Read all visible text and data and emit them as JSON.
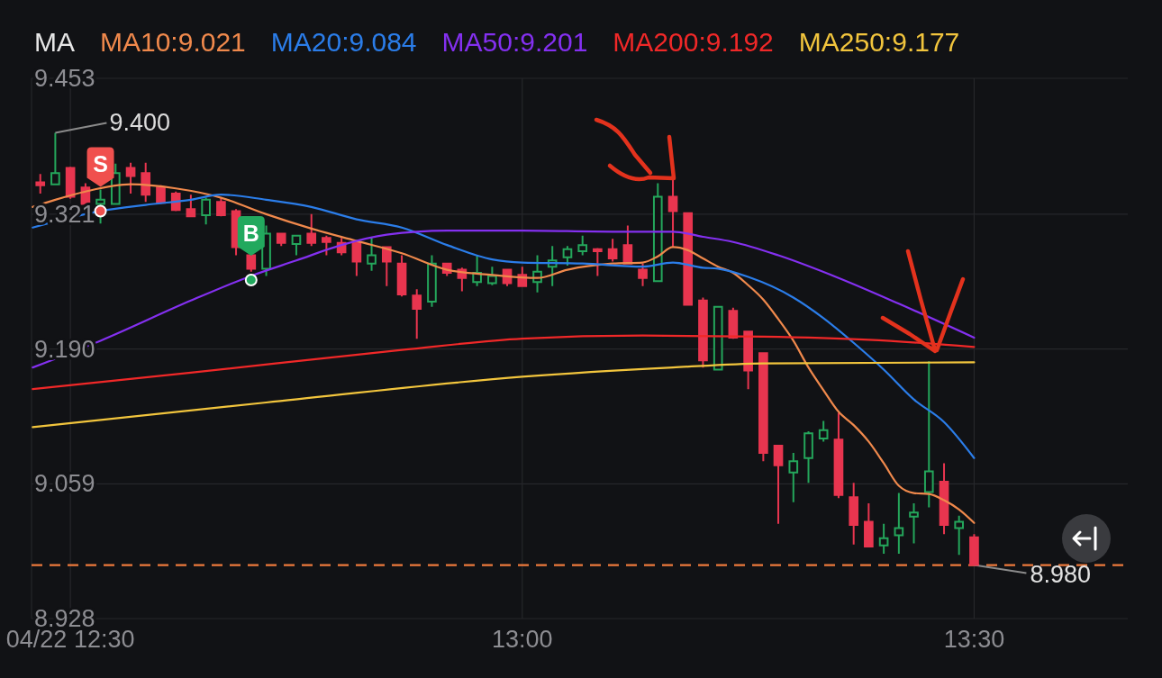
{
  "chart_data": {
    "type": "candlestick",
    "legend_title": "MA",
    "legend": "top left",
    "grid": true,
    "xlim": [
      12.457,
      13.67
    ],
    "xticks": [
      {
        "value": 12.5,
        "label": "04/22 12:30"
      },
      {
        "value": 13,
        "label": "13:00"
      },
      {
        "value": 13.5,
        "label": "13:30"
      }
    ],
    "ylim": [
      8.928,
      9.453
    ],
    "yticks": [
      9.453,
      9.321,
      {
        "value": 9.19,
        "label": "9.190"
      },
      9.059,
      8.928
    ],
    "x": [
      12.4667,
      12.4833,
      12.5,
      12.5167,
      12.5333,
      12.55,
      12.5667,
      12.5833,
      12.6,
      12.6167,
      12.6333,
      12.65,
      12.6667,
      12.6833,
      12.7,
      12.7167,
      12.7333,
      12.75,
      12.7667,
      12.7833,
      12.8,
      12.8167,
      12.8333,
      12.85,
      12.8667,
      12.8833,
      12.9,
      12.9167,
      12.9333,
      12.95,
      12.9667,
      12.9833,
      13,
      13.0167,
      13.0333,
      13.05,
      13.0667,
      13.0833,
      13.1,
      13.1167,
      13.1333,
      13.15,
      13.1667,
      13.1833,
      13.2,
      13.2167,
      13.2333,
      13.25,
      13.2667,
      13.2833,
      13.3,
      13.3167,
      13.3333,
      13.35,
      13.3667,
      13.3833,
      13.4,
      13.4167,
      13.4333,
      13.45,
      13.4667,
      13.4833,
      13.5
    ],
    "ohlc": [
      [
        9.352,
        9.36,
        9.341,
        9.349
      ],
      [
        9.35,
        9.4,
        9.349,
        9.361
      ],
      [
        9.366,
        9.367,
        9.336,
        9.338
      ],
      [
        9.347,
        9.351,
        9.328,
        9.331
      ],
      [
        9.331,
        9.345,
        9.312,
        9.335
      ],
      [
        9.331,
        9.37,
        9.331,
        9.361
      ],
      [
        9.366,
        9.371,
        9.341,
        9.358
      ],
      [
        9.361,
        9.371,
        9.333,
        9.34
      ],
      [
        9.347,
        9.349,
        9.331,
        9.332
      ],
      [
        9.341,
        9.343,
        9.324,
        9.325
      ],
      [
        9.326,
        9.34,
        9.318,
        9.319
      ],
      [
        9.32,
        9.337,
        9.311,
        9.335
      ],
      [
        9.333,
        9.337,
        9.319,
        9.32
      ],
      [
        9.324,
        9.326,
        9.281,
        9.289
      ],
      [
        9.281,
        9.281,
        9.265,
        9.268
      ],
      [
        9.268,
        9.31,
        9.261,
        9.302
      ],
      [
        9.302,
        9.303,
        9.29,
        9.293
      ],
      [
        9.292,
        9.301,
        9.281,
        9.3
      ],
      [
        9.302,
        9.321,
        9.29,
        9.293
      ],
      [
        9.298,
        9.3,
        9.281,
        9.294
      ],
      [
        9.293,
        9.298,
        9.281,
        9.284
      ],
      [
        9.293,
        9.294,
        9.261,
        9.275
      ],
      [
        9.273,
        9.299,
        9.266,
        9.281
      ],
      [
        9.289,
        9.289,
        9.251,
        9.275
      ],
      [
        9.273,
        9.281,
        9.241,
        9.243
      ],
      [
        9.242,
        9.248,
        9.2,
        9.229
      ],
      [
        9.236,
        9.281,
        9.231,
        9.273
      ],
      [
        9.273,
        9.273,
        9.261,
        9.264
      ],
      [
        9.267,
        9.269,
        9.246,
        9.259
      ],
      [
        9.255,
        9.281,
        9.251,
        9.264
      ],
      [
        9.254,
        9.27,
        9.252,
        9.261
      ],
      [
        9.267,
        9.268,
        9.251,
        9.254
      ],
      [
        9.262,
        9.27,
        9.251,
        9.251
      ],
      [
        9.255,
        9.281,
        9.245,
        9.265
      ],
      [
        9.27,
        9.29,
        9.251,
        9.276
      ],
      [
        9.279,
        9.29,
        9.271,
        9.287
      ],
      [
        9.285,
        9.3,
        9.281,
        9.291
      ],
      [
        9.287,
        9.288,
        9.261,
        9.285
      ],
      [
        9.287,
        9.297,
        9.275,
        9.278
      ],
      [
        9.291,
        9.31,
        9.272,
        9.273
      ],
      [
        9.267,
        9.273,
        9.251,
        9.259
      ],
      [
        9.256,
        9.351,
        9.256,
        9.338
      ],
      [
        9.338,
        9.357,
        9.289,
        9.324
      ],
      [
        9.322,
        9.322,
        9.232,
        9.233
      ],
      [
        9.237,
        9.24,
        9.172,
        9.179
      ],
      [
        9.17,
        9.231,
        9.17,
        9.231
      ],
      [
        9.227,
        9.23,
        9.2,
        9.201
      ],
      [
        9.207,
        9.207,
        9.151,
        9.169
      ],
      [
        9.186,
        9.186,
        9.081,
        9.089
      ],
      [
        9.096,
        9.096,
        9.02,
        9.077
      ],
      [
        9.07,
        9.089,
        9.041,
        9.081
      ],
      [
        9.084,
        9.11,
        9.06,
        9.108
      ],
      [
        9.103,
        9.12,
        9.1,
        9.111
      ],
      [
        9.102,
        9.128,
        9.045,
        9.048
      ],
      [
        9.046,
        9.06,
        9.0,
        9.019
      ],
      [
        9.022,
        9.04,
        8.998,
        8.998
      ],
      [
        8.999,
        9.02,
        8.991,
        9.006
      ],
      [
        9.009,
        9.05,
        8.991,
        9.016
      ],
      [
        9.027,
        9.04,
        9.001,
        9.031
      ],
      [
        9.051,
        9.178,
        9.036,
        9.071
      ],
      [
        9.061,
        9.079,
        9.01,
        9.019
      ],
      [
        9.016,
        9.028,
        8.99,
        9.022
      ],
      [
        9.007,
        9.01,
        8.98,
        8.98
      ]
    ],
    "series": [
      {
        "name": "MA10:9.021",
        "type": "line",
        "color": "#f0894c",
        "x": [
          12.4583,
          12.4833,
          12.5167,
          12.5667,
          12.6167,
          12.6667,
          12.7167,
          12.7667,
          12.8167,
          12.8667,
          12.9167,
          12.9667,
          13.0167,
          13.05,
          13.1,
          13.1333,
          13.15,
          13.1667,
          13.1833,
          13.2,
          13.2167,
          13.2333,
          13.25,
          13.2667,
          13.2833,
          13.3,
          13.3167,
          13.3333,
          13.35,
          13.3667,
          13.3833,
          13.4,
          13.4167,
          13.4333,
          13.45,
          13.4667,
          13.4833,
          13.5
        ],
        "values": [
          9.328,
          9.335,
          9.343,
          9.35,
          9.346,
          9.337,
          9.321,
          9.307,
          9.295,
          9.283,
          9.267,
          9.262,
          9.259,
          9.267,
          9.273,
          9.274,
          9.28,
          9.289,
          9.286,
          9.278,
          9.27,
          9.264,
          9.252,
          9.238,
          9.219,
          9.198,
          9.172,
          9.15,
          9.129,
          9.116,
          9.1,
          9.079,
          9.057,
          9.05,
          9.049,
          9.043,
          9.034,
          9.021
        ]
      },
      {
        "name": "MA20:9.084",
        "type": "line",
        "color": "#2b7de9",
        "x": [
          12.4583,
          12.5333,
          12.5833,
          12.6333,
          12.6667,
          12.7167,
          12.7667,
          12.8167,
          12.8667,
          12.9167,
          12.9667,
          13,
          13.0667,
          13.1333,
          13.1667,
          13.2,
          13.2167,
          13.25,
          13.3,
          13.3333,
          13.3667,
          13.4,
          13.4333,
          13.4667,
          13.5
        ],
        "values": [
          9.308,
          9.324,
          9.33,
          9.335,
          9.34,
          9.335,
          9.328,
          9.316,
          9.308,
          9.291,
          9.277,
          9.274,
          9.273,
          9.27,
          9.274,
          9.269,
          9.268,
          9.26,
          9.24,
          9.22,
          9.196,
          9.17,
          9.141,
          9.119,
          9.084
        ]
      },
      {
        "name": "MA50:9.201",
        "type": "line",
        "color": "#8430f0",
        "x": [
          12.4583,
          12.5333,
          12.6333,
          12.7,
          12.75,
          12.8,
          12.85,
          12.9167,
          13,
          13.1,
          13.1667,
          13.2,
          13.2333,
          13.2833,
          13.35,
          13.4167,
          13.5
        ],
        "values": [
          9.172,
          9.198,
          9.237,
          9.261,
          9.276,
          9.291,
          9.301,
          9.305,
          9.305,
          9.304,
          9.304,
          9.299,
          9.294,
          9.281,
          9.259,
          9.234,
          9.201
        ]
      },
      {
        "name": "MA200:9.192",
        "type": "line",
        "color": "#f02828",
        "x": [
          12.4583,
          12.6333,
          12.8667,
          13,
          13.1333,
          13.2667,
          13.3833,
          13.5
        ],
        "values": [
          9.151,
          9.167,
          9.189,
          9.2,
          9.203,
          9.202,
          9.199,
          9.192
        ]
      },
      {
        "name": "MA250:9.177",
        "type": "line",
        "color": "#f2c53d",
        "x": [
          12.4583,
          12.7167,
          13,
          13.1667,
          13.2667,
          13.5
        ],
        "values": [
          9.114,
          9.138,
          9.163,
          9.172,
          9.176,
          9.177
        ]
      }
    ],
    "ref_lines": [
      {
        "axis": "y",
        "value": 8.98,
        "label": "8.980",
        "color": "#ee7a3c",
        "line_style": "dashed"
      }
    ],
    "annotations": [
      {
        "text": "9.400",
        "x": 12.4833,
        "y": 9.4
      },
      {
        "text": "S",
        "x": 12.5333,
        "y": 9.324
      },
      {
        "text": "B",
        "x": 12.7,
        "y": 9.257
      }
    ]
  }
}
